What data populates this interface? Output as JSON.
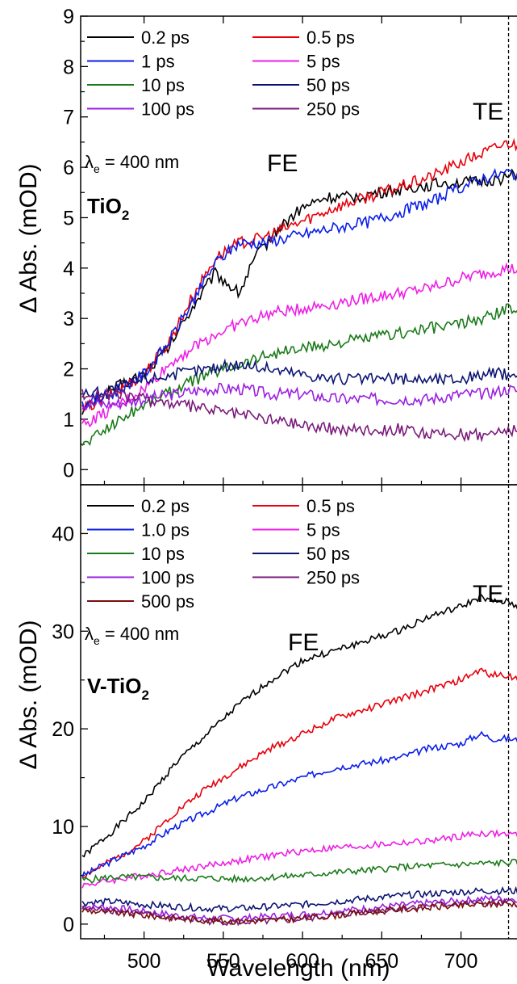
{
  "chart_data": [
    {
      "type": "line",
      "panel": "top",
      "material_label": "TiO",
      "material_sub": "2",
      "excitation_symbol": "λ",
      "excitation_sub": "e",
      "excitation_text": " = 400 nm",
      "annotations": {
        "fe": "FE",
        "te": "TE"
      },
      "ylabel": "Δ Abs. (mOD)",
      "xlabel": "",
      "xlim": [
        460,
        745
      ],
      "ylim": [
        -0.3,
        9
      ],
      "yticks": [
        0,
        1,
        2,
        3,
        4,
        5,
        6,
        7,
        8,
        9
      ],
      "marker_x": 730,
      "legend_position": "top-left",
      "series": [
        {
          "name": "0.2 ps",
          "color": "#000000",
          "x": [
            462,
            480,
            500,
            515,
            530,
            545,
            560,
            570,
            585,
            600,
            615,
            630,
            650,
            670,
            690,
            710,
            730,
            745
          ],
          "y": [
            1.2,
            1.6,
            1.9,
            2.4,
            3.2,
            3.9,
            3.5,
            4.2,
            4.8,
            5.2,
            5.4,
            5.4,
            5.5,
            5.6,
            5.7,
            5.7,
            5.8,
            6.0
          ]
        },
        {
          "name": "0.5 ps",
          "color": "#e8000b",
          "x": [
            462,
            480,
            500,
            515,
            530,
            545,
            560,
            575,
            590,
            605,
            620,
            640,
            660,
            680,
            700,
            715,
            730,
            745
          ],
          "y": [
            1.2,
            1.5,
            1.9,
            2.5,
            3.4,
            4.2,
            4.5,
            4.6,
            4.8,
            5.0,
            5.2,
            5.4,
            5.6,
            5.8,
            6.1,
            6.3,
            6.5,
            6.3
          ]
        },
        {
          "name": "1 ps",
          "color": "#0a1ee8",
          "x": [
            462,
            480,
            500,
            515,
            530,
            545,
            560,
            575,
            590,
            605,
            620,
            640,
            660,
            680,
            700,
            715,
            730,
            745
          ],
          "y": [
            1.3,
            1.5,
            1.9,
            2.5,
            3.3,
            4.1,
            4.5,
            4.5,
            4.6,
            4.7,
            4.8,
            4.9,
            5.1,
            5.3,
            5.6,
            5.8,
            5.9,
            5.8
          ]
        },
        {
          "name": "5 ps",
          "color": "#ee1ee6",
          "x": [
            462,
            480,
            500,
            520,
            540,
            560,
            580,
            600,
            620,
            640,
            660,
            680,
            700,
            715,
            730,
            745
          ],
          "y": [
            0.9,
            1.2,
            1.6,
            2.2,
            2.6,
            2.9,
            3.1,
            3.2,
            3.3,
            3.4,
            3.5,
            3.6,
            3.8,
            3.9,
            4.0,
            3.9
          ]
        },
        {
          "name": "10 ps",
          "color": "#1a7a1a",
          "x": [
            462,
            480,
            500,
            520,
            540,
            560,
            580,
            600,
            620,
            640,
            660,
            680,
            700,
            715,
            730,
            745
          ],
          "y": [
            0.5,
            0.9,
            1.3,
            1.6,
            1.9,
            2.1,
            2.3,
            2.4,
            2.5,
            2.6,
            2.7,
            2.8,
            2.9,
            3.0,
            3.2,
            3.1
          ]
        },
        {
          "name": "50 ps",
          "color": "#0c1473",
          "x": [
            462,
            480,
            500,
            520,
            540,
            560,
            580,
            600,
            620,
            640,
            660,
            680,
            700,
            715,
            730,
            745
          ],
          "y": [
            1.5,
            1.6,
            1.8,
            1.9,
            2.0,
            2.1,
            2.0,
            1.9,
            1.8,
            1.8,
            1.8,
            1.8,
            1.8,
            1.9,
            1.9,
            1.8
          ]
        },
        {
          "name": "100 ps",
          "color": "#9a1fe0",
          "x": [
            462,
            480,
            500,
            520,
            540,
            560,
            580,
            600,
            620,
            640,
            660,
            680,
            700,
            715,
            730,
            745
          ],
          "y": [
            1.3,
            1.3,
            1.4,
            1.5,
            1.6,
            1.6,
            1.5,
            1.5,
            1.4,
            1.4,
            1.4,
            1.4,
            1.5,
            1.5,
            1.6,
            1.5
          ]
        },
        {
          "name": "250 ps",
          "color": "#7b1a7b",
          "x": [
            462,
            480,
            500,
            520,
            540,
            560,
            580,
            600,
            620,
            640,
            660,
            680,
            700,
            715,
            730,
            745
          ],
          "y": [
            1.5,
            1.5,
            1.4,
            1.3,
            1.2,
            1.1,
            1.0,
            0.9,
            0.8,
            0.8,
            0.8,
            0.7,
            0.7,
            0.7,
            0.8,
            0.7
          ]
        }
      ]
    },
    {
      "type": "line",
      "panel": "bottom",
      "material_label": "V-TiO",
      "material_sub": "2",
      "excitation_symbol": "λ",
      "excitation_sub": "e",
      "excitation_text": " = 400 nm",
      "annotations": {
        "fe": "FE",
        "te": "TE"
      },
      "ylabel": "Δ Abs. (mOD)",
      "xlabel": "Wavelength (nm)",
      "xlim": [
        460,
        745
      ],
      "ylim": [
        -1.5,
        45
      ],
      "xticks": [
        500,
        550,
        600,
        650,
        700
      ],
      "yticks": [
        0,
        10,
        20,
        30,
        40
      ],
      "marker_x": 730,
      "legend_position": "top-left",
      "series": [
        {
          "name": "0.2 ps",
          "color": "#000000",
          "x": [
            462,
            480,
            500,
            520,
            540,
            560,
            580,
            600,
            620,
            640,
            660,
            680,
            700,
            712,
            720,
            730,
            745
          ],
          "y": [
            7.0,
            9.5,
            12.5,
            16.5,
            19.5,
            22.5,
            25.0,
            27.0,
            28.0,
            29.0,
            30.0,
            31.5,
            32.5,
            33.5,
            33.0,
            33.0,
            31.5
          ]
        },
        {
          "name": "0.5 ps",
          "color": "#e8000b",
          "x": [
            462,
            480,
            500,
            520,
            540,
            560,
            580,
            600,
            620,
            640,
            660,
            680,
            700,
            712,
            720,
            730,
            745
          ],
          "y": [
            5.0,
            6.5,
            8.5,
            11.5,
            14.0,
            16.0,
            18.0,
            19.5,
            21.0,
            22.0,
            23.0,
            24.0,
            25.0,
            26.0,
            25.5,
            25.5,
            24.5
          ]
        },
        {
          "name": "1.0 ps",
          "color": "#0a1ee8",
          "x": [
            462,
            480,
            500,
            520,
            540,
            560,
            580,
            600,
            620,
            640,
            660,
            680,
            700,
            712,
            720,
            730,
            745
          ],
          "y": [
            5.0,
            6.5,
            8.0,
            10.0,
            11.5,
            13.0,
            14.0,
            15.0,
            16.0,
            16.5,
            17.0,
            18.0,
            18.5,
            19.5,
            19.0,
            19.0,
            18.5
          ]
        },
        {
          "name": "5 ps",
          "color": "#ee1ee6",
          "x": [
            462,
            480,
            500,
            520,
            540,
            560,
            580,
            600,
            620,
            640,
            660,
            680,
            700,
            712,
            730,
            745
          ],
          "y": [
            4.0,
            4.5,
            5.0,
            5.5,
            6.0,
            6.5,
            7.0,
            7.5,
            7.8,
            8.0,
            8.3,
            8.5,
            9.0,
            9.3,
            9.2,
            9.0
          ]
        },
        {
          "name": "10 ps",
          "color": "#1a7a1a",
          "x": [
            462,
            480,
            500,
            520,
            540,
            560,
            580,
            600,
            620,
            640,
            660,
            680,
            700,
            712,
            730,
            745
          ],
          "y": [
            4.5,
            4.8,
            4.8,
            4.7,
            4.7,
            4.6,
            4.8,
            5.0,
            5.3,
            5.5,
            5.8,
            6.0,
            6.1,
            6.2,
            6.3,
            6.3
          ]
        },
        {
          "name": "50 ps",
          "color": "#0c1473",
          "x": [
            462,
            480,
            500,
            520,
            540,
            560,
            580,
            600,
            620,
            640,
            660,
            680,
            700,
            712,
            730,
            745
          ],
          "y": [
            2.2,
            2.3,
            2.0,
            1.8,
            1.6,
            1.6,
            1.8,
            2.0,
            2.3,
            2.6,
            2.9,
            3.1,
            3.3,
            3.4,
            3.4,
            3.3
          ]
        },
        {
          "name": "100 ps",
          "color": "#9a1fe0",
          "x": [
            462,
            480,
            500,
            520,
            540,
            560,
            580,
            600,
            620,
            640,
            660,
            680,
            700,
            712,
            730,
            745
          ],
          "y": [
            1.8,
            1.7,
            1.3,
            0.9,
            0.6,
            0.6,
            0.8,
            1.0,
            1.3,
            1.6,
            1.9,
            2.2,
            2.4,
            2.6,
            2.6,
            2.5
          ]
        },
        {
          "name": "250 ps",
          "color": "#7b1a7b",
          "x": [
            462,
            480,
            500,
            520,
            540,
            560,
            580,
            600,
            620,
            640,
            660,
            680,
            700,
            712,
            730,
            745
          ],
          "y": [
            1.6,
            1.4,
            1.0,
            0.6,
            0.3,
            0.2,
            0.3,
            0.5,
            0.9,
            1.3,
            1.6,
            1.9,
            2.1,
            2.2,
            2.2,
            2.1
          ]
        },
        {
          "name": "500 ps",
          "color": "#7a1010",
          "x": [
            462,
            480,
            500,
            520,
            540,
            560,
            580,
            600,
            620,
            640,
            660,
            680,
            700,
            712,
            730,
            745
          ],
          "y": [
            1.4,
            1.2,
            0.9,
            0.6,
            0.4,
            0.3,
            0.4,
            0.6,
            0.9,
            1.2,
            1.5,
            1.7,
            1.9,
            2.0,
            2.1,
            2.0
          ]
        }
      ]
    }
  ]
}
